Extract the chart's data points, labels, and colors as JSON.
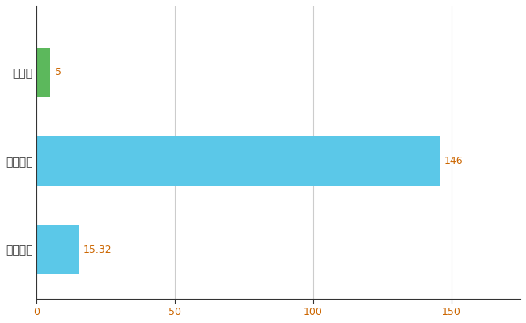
{
  "categories": [
    "高知県",
    "全国最大",
    "全国平均"
  ],
  "values": [
    5,
    146,
    15.32
  ],
  "bar_colors": [
    "#5cb85c",
    "#5bc8e8",
    "#5bc8e8"
  ],
  "value_labels": [
    "5",
    "146",
    "15.32"
  ],
  "xlim": [
    0,
    175
  ],
  "xticks": [
    0,
    50,
    100,
    150
  ],
  "background_color": "#ffffff",
  "grid_color": "#cccccc",
  "label_color": "#cc6600",
  "tick_label_color": "#cc6600",
  "bar_height": 0.55,
  "figsize": [
    6.5,
    4.0
  ],
  "dpi": 100
}
